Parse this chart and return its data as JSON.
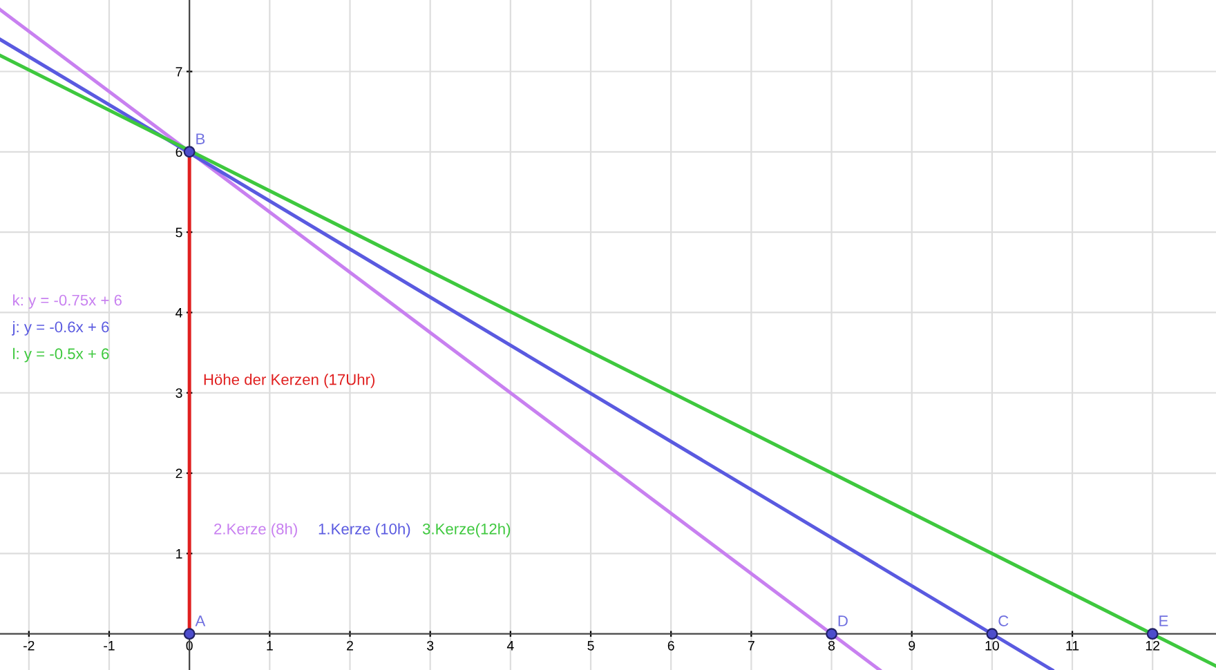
{
  "chart_data": {
    "type": "line",
    "xlim": [
      -2.36,
      12.79
    ],
    "ylim": [
      -0.45,
      7.89
    ],
    "xticks": [
      -2,
      -1,
      0,
      1,
      2,
      3,
      4,
      5,
      6,
      7,
      8,
      9,
      10,
      11,
      12
    ],
    "yticks": [
      1,
      2,
      3,
      4,
      5,
      6,
      7
    ],
    "grid": true,
    "legend": false,
    "marker": "none",
    "line_style": "solid",
    "series": [
      {
        "name": "k: y = -0.75x + 6",
        "color": "#c880f0",
        "x": [
          -2.36,
          8.6
        ],
        "values": [
          7.77,
          -0.45
        ]
      },
      {
        "name": "j: y = -0.6x + 6",
        "color": "#5a5ae0",
        "x": [
          -2.36,
          10.75
        ],
        "values": [
          7.4,
          -0.45
        ]
      },
      {
        "name": "l: y = -0.5x + 6",
        "color": "#3ec83e",
        "x": [
          -2.36,
          12.79
        ],
        "values": [
          7.2,
          -0.4
        ]
      },
      {
        "color": "#e02020",
        "x": [
          0,
          0
        ],
        "values": [
          0,
          6
        ]
      },
      {
        "type": "scatter",
        "marker": "circle",
        "color": "#4d4dcc",
        "x": [
          0,
          0,
          8,
          10,
          12
        ],
        "values": [
          0,
          6,
          0,
          0,
          0
        ]
      }
    ],
    "annotations": [
      {
        "text": "A",
        "x": 0,
        "y": 0
      },
      {
        "text": "B",
        "x": 0,
        "y": 6
      },
      {
        "text": "D",
        "x": 8,
        "y": 0
      },
      {
        "text": "C",
        "x": 10,
        "y": 0
      },
      {
        "text": "E",
        "x": 12,
        "y": 0
      },
      "Höhe der Kerzen (17Uhr)",
      "2.Kerze (8h)",
      "1.Kerze (10h)",
      "3.Kerze(12h)"
    ]
  }
}
